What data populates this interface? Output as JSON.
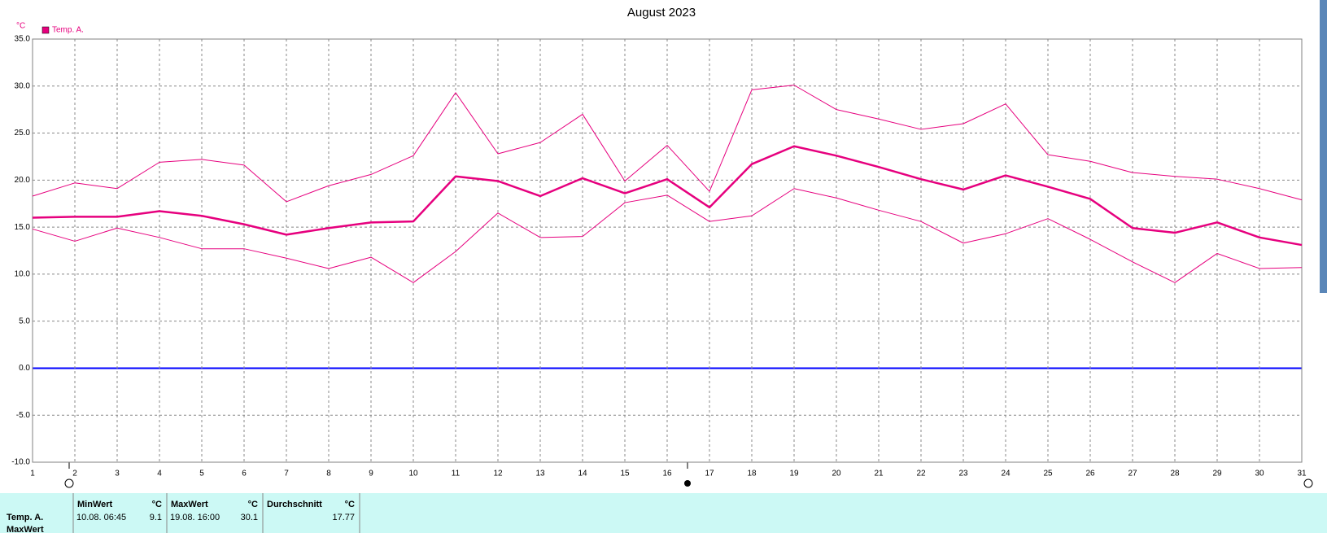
{
  "chart_data": {
    "type": "line",
    "title": "August 2023",
    "y_unit": "°C",
    "x": [
      1,
      2,
      3,
      4,
      5,
      6,
      7,
      8,
      9,
      10,
      11,
      12,
      13,
      14,
      15,
      16,
      17,
      18,
      19,
      20,
      21,
      22,
      23,
      24,
      25,
      26,
      27,
      28,
      29,
      30,
      31
    ],
    "xlim": [
      1,
      31
    ],
    "xticks": [
      1,
      2,
      3,
      4,
      5,
      6,
      7,
      8,
      9,
      10,
      11,
      12,
      13,
      14,
      15,
      16,
      17,
      18,
      19,
      20,
      21,
      22,
      23,
      24,
      25,
      26,
      27,
      28,
      29,
      30,
      31
    ],
    "ylim": [
      -10,
      35
    ],
    "yticks": [
      {
        "value": -10,
        "label": "-10.0"
      },
      {
        "value": -5,
        "label": "-5.0"
      },
      {
        "value": 0,
        "label": "0.0"
      },
      {
        "value": 5,
        "label": "5.0"
      },
      {
        "value": 10,
        "label": "10.0"
      },
      {
        "value": 15,
        "label": "15.0"
      },
      {
        "value": 20,
        "label": "20.0"
      },
      {
        "value": 25,
        "label": "25.0"
      },
      {
        "value": 30,
        "label": "30.0"
      },
      {
        "value": 35,
        "label": "35.0"
      }
    ],
    "grid": true,
    "zero_line_color": "#0000ff",
    "legend_position": "top-left",
    "series": [
      {
        "name": "Temp. A.",
        "color": "#e6007e",
        "values": [
          16.0,
          16.1,
          16.1,
          16.7,
          16.2,
          15.3,
          14.2,
          14.9,
          15.5,
          15.6,
          20.4,
          19.9,
          18.3,
          20.2,
          18.6,
          20.1,
          17.1,
          21.7,
          23.6,
          22.6,
          21.4,
          20.1,
          19.0,
          20.5,
          19.3,
          18.0,
          14.9,
          14.4,
          15.5,
          13.9,
          13.1
        ],
        "min": [
          14.8,
          13.5,
          14.9,
          13.9,
          12.7,
          12.7,
          11.7,
          10.6,
          11.8,
          9.1,
          12.4,
          16.5,
          13.9,
          14.0,
          17.6,
          18.4,
          15.6,
          16.2,
          19.1,
          18.1,
          16.8,
          15.6,
          13.3,
          14.3,
          15.9,
          13.7,
          11.3,
          9.1,
          12.2,
          10.6,
          10.7
        ],
        "max": [
          18.3,
          19.7,
          19.1,
          21.9,
          22.2,
          21.6,
          17.7,
          19.4,
          20.6,
          22.6,
          29.3,
          22.8,
          24.0,
          27.0,
          19.9,
          23.7,
          18.8,
          29.6,
          30.1,
          27.5,
          26.5,
          25.4,
          26.0,
          28.1,
          22.7,
          22.0,
          20.8,
          20.4,
          20.1,
          19.1,
          17.9
        ]
      }
    ]
  },
  "stats_table": {
    "columns": [
      {
        "title": "MinWert",
        "unit": "°C"
      },
      {
        "title": "MaxWert",
        "unit": "°C"
      },
      {
        "title": "Durchschnitt",
        "unit": "°C"
      }
    ],
    "rows": [
      {
        "label": "Temp. A.",
        "min_time": "10.08.  06:45",
        "min": "9.1",
        "max_time": "19.08.  16:00",
        "max": "30.1",
        "avg": "17.77"
      },
      {
        "label": "MaxWert"
      }
    ]
  }
}
